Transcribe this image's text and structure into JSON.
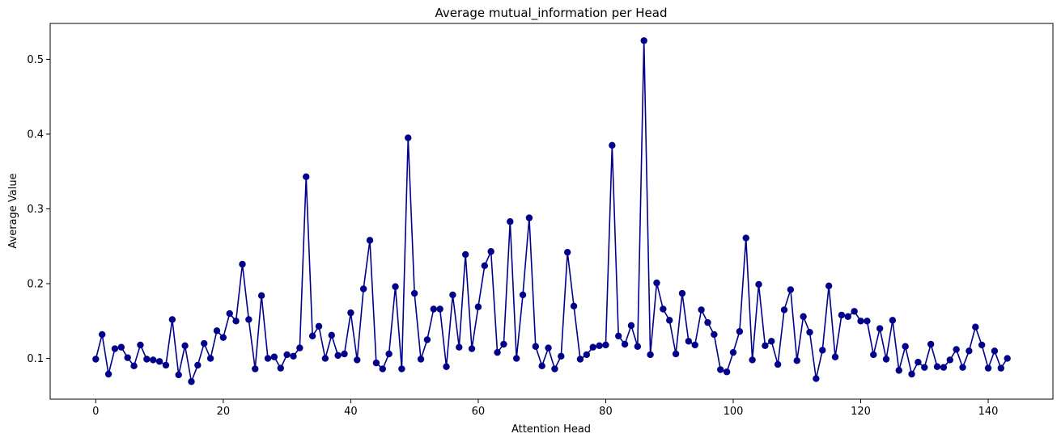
{
  "chart_data": {
    "type": "line",
    "title": "Average mutual_information per Head",
    "xlabel": "Attention Head",
    "ylabel": "Average Value",
    "xlim": [
      -7.15,
      150.15
    ],
    "ylim": [
      0.0455,
      0.548
    ],
    "xticks": [
      0,
      20,
      40,
      60,
      80,
      100,
      120,
      140
    ],
    "yticks": [
      0.1,
      0.2,
      0.3,
      0.4,
      0.5
    ],
    "grid": false,
    "marker": "circle",
    "color": "#00008b",
    "x_start": 0,
    "values": [
      0.099,
      0.132,
      0.079,
      0.113,
      0.115,
      0.101,
      0.09,
      0.118,
      0.099,
      0.098,
      0.096,
      0.091,
      0.152,
      0.078,
      0.117,
      0.069,
      0.091,
      0.12,
      0.1,
      0.137,
      0.128,
      0.16,
      0.15,
      0.226,
      0.152,
      0.086,
      0.184,
      0.1,
      0.102,
      0.087,
      0.105,
      0.103,
      0.114,
      0.343,
      0.13,
      0.143,
      0.1,
      0.131,
      0.104,
      0.106,
      0.161,
      0.098,
      0.193,
      0.258,
      0.094,
      0.086,
      0.106,
      0.196,
      0.086,
      0.395,
      0.187,
      0.099,
      0.125,
      0.166,
      0.166,
      0.089,
      0.185,
      0.115,
      0.239,
      0.113,
      0.169,
      0.224,
      0.243,
      0.108,
      0.119,
      0.283,
      0.1,
      0.185,
      0.288,
      0.116,
      0.09,
      0.114,
      0.086,
      0.103,
      0.242,
      0.17,
      0.099,
      0.105,
      0.115,
      0.117,
      0.118,
      0.385,
      0.13,
      0.119,
      0.144,
      0.116,
      0.525,
      0.105,
      0.201,
      0.166,
      0.151,
      0.106,
      0.187,
      0.123,
      0.118,
      0.165,
      0.148,
      0.132,
      0.085,
      0.082,
      0.108,
      0.136,
      0.261,
      0.098,
      0.199,
      0.117,
      0.123,
      0.092,
      0.165,
      0.192,
      0.097,
      0.156,
      0.135,
      0.073,
      0.111,
      0.197,
      0.102,
      0.158,
      0.156,
      0.163,
      0.15,
      0.15,
      0.105,
      0.14,
      0.099,
      0.151,
      0.084,
      0.116,
      0.079,
      0.095,
      0.088,
      0.119,
      0.089,
      0.088,
      0.098,
      0.112,
      0.088,
      0.11,
      0.142,
      0.118,
      0.087,
      0.11,
      0.087,
      0.1
    ]
  }
}
